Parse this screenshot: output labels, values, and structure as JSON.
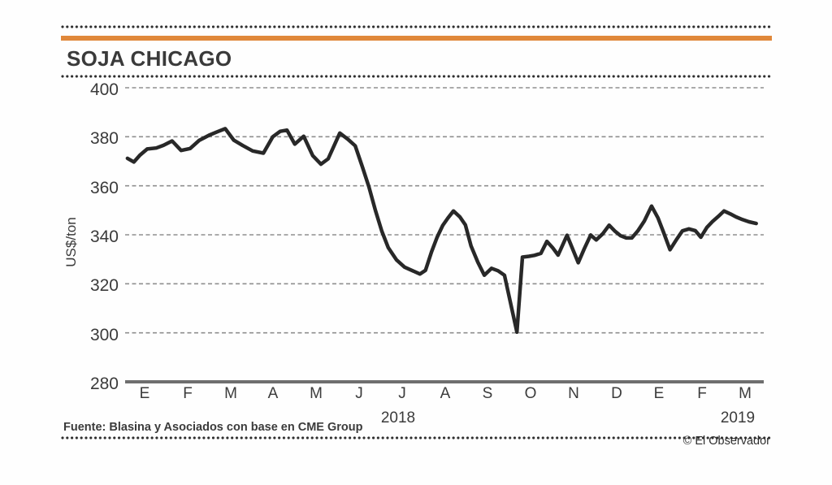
{
  "header": {
    "title": "SOJA CHICAGO"
  },
  "footer": {
    "source": "Fuente: Blasina y Asociados con base en CME Group",
    "credit": "© El Observador"
  },
  "colors": {
    "accent_bar": "#E0883A",
    "line": "#282828",
    "grid": "#8f8f8f",
    "axis": "#6f6f6f",
    "text": "#3b3b3b"
  },
  "chart_data": {
    "type": "line",
    "title": "SOJA CHICAGO",
    "xlabel": "",
    "ylabel": "US$/ton",
    "ylim": [
      280,
      400
    ],
    "y_ticks": [
      400,
      380,
      360,
      340,
      320,
      300,
      280
    ],
    "x_tick_labels": [
      "E",
      "F",
      "M",
      "A",
      "M",
      "J",
      "J",
      "A",
      "S",
      "O",
      "N",
      "D",
      "E",
      "F",
      "M"
    ],
    "year_labels": [
      {
        "label": "2018",
        "month_index": 5.91
      },
      {
        "label": "2019",
        "month_index": 13.83
      }
    ],
    "grid": "horizontal dashed",
    "legend_position": "none",
    "series": [
      {
        "name": "Soja Chicago (US$/ton)",
        "points": [
          [
            -0.4,
            371.2
          ],
          [
            -0.25,
            369.7
          ],
          [
            -0.11,
            372.5
          ],
          [
            0.06,
            375.0
          ],
          [
            0.27,
            375.4
          ],
          [
            0.44,
            376.5
          ],
          [
            0.64,
            378.3
          ],
          [
            0.85,
            374.4
          ],
          [
            1.06,
            375.2
          ],
          [
            1.27,
            378.5
          ],
          [
            1.5,
            380.6
          ],
          [
            1.69,
            382.0
          ],
          [
            1.88,
            383.3
          ],
          [
            2.08,
            378.6
          ],
          [
            2.29,
            376.4
          ],
          [
            2.52,
            374.2
          ],
          [
            2.77,
            373.3
          ],
          [
            2.99,
            380.0
          ],
          [
            3.16,
            382.2
          ],
          [
            3.32,
            382.7
          ],
          [
            3.5,
            377.0
          ],
          [
            3.71,
            380.2
          ],
          [
            3.92,
            372.3
          ],
          [
            4.11,
            368.8
          ],
          [
            4.28,
            371.0
          ],
          [
            4.55,
            381.5
          ],
          [
            4.74,
            379.0
          ],
          [
            4.91,
            376.3
          ],
          [
            5.08,
            367.5
          ],
          [
            5.23,
            359.5
          ],
          [
            5.38,
            350.0
          ],
          [
            5.53,
            341.5
          ],
          [
            5.68,
            334.8
          ],
          [
            5.87,
            329.8
          ],
          [
            6.06,
            326.8
          ],
          [
            6.25,
            325.3
          ],
          [
            6.42,
            324.0
          ],
          [
            6.55,
            325.5
          ],
          [
            6.69,
            333.0
          ],
          [
            6.82,
            339.0
          ],
          [
            6.95,
            343.8
          ],
          [
            7.07,
            346.8
          ],
          [
            7.2,
            349.7
          ],
          [
            7.35,
            347.3
          ],
          [
            7.48,
            344.0
          ],
          [
            7.61,
            335.5
          ],
          [
            7.77,
            328.8
          ],
          [
            7.92,
            323.5
          ],
          [
            8.09,
            326.3
          ],
          [
            8.24,
            325.3
          ],
          [
            8.39,
            323.5
          ],
          [
            8.68,
            300.3
          ],
          [
            8.81,
            330.9
          ],
          [
            8.96,
            331.2
          ],
          [
            9.09,
            331.6
          ],
          [
            9.24,
            332.4
          ],
          [
            9.38,
            337.3
          ],
          [
            9.51,
            334.8
          ],
          [
            9.64,
            331.7
          ],
          [
            9.85,
            339.8
          ],
          [
            9.98,
            334.2
          ],
          [
            10.11,
            328.6
          ],
          [
            10.25,
            334.3
          ],
          [
            10.4,
            339.9
          ],
          [
            10.53,
            337.9
          ],
          [
            10.68,
            340.4
          ],
          [
            10.83,
            343.9
          ],
          [
            10.97,
            341.4
          ],
          [
            11.1,
            339.6
          ],
          [
            11.23,
            338.7
          ],
          [
            11.36,
            338.7
          ],
          [
            11.5,
            341.6
          ],
          [
            11.65,
            345.6
          ],
          [
            11.82,
            351.7
          ],
          [
            11.97,
            346.9
          ],
          [
            12.1,
            341.0
          ],
          [
            12.25,
            333.9
          ],
          [
            12.41,
            338.3
          ],
          [
            12.54,
            341.6
          ],
          [
            12.69,
            342.4
          ],
          [
            12.84,
            341.7
          ],
          [
            12.97,
            339.0
          ],
          [
            13.11,
            343.0
          ],
          [
            13.24,
            345.4
          ],
          [
            13.37,
            347.4
          ],
          [
            13.51,
            349.7
          ],
          [
            13.66,
            348.5
          ],
          [
            13.79,
            347.3
          ],
          [
            13.94,
            346.2
          ],
          [
            14.09,
            345.3
          ],
          [
            14.26,
            344.6
          ]
        ]
      }
    ]
  }
}
